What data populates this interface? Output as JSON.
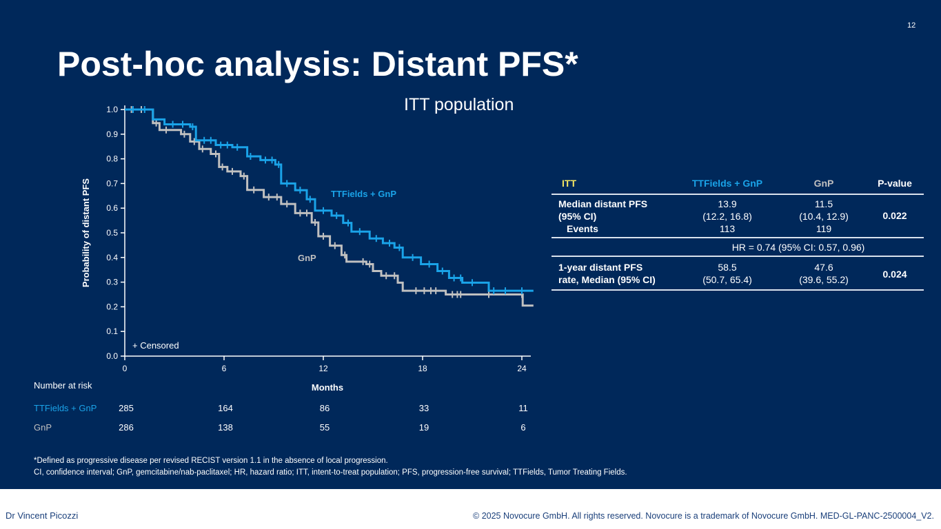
{
  "slide": {
    "title": "Post-hoc analysis: Distant PFS*",
    "page_number": "12",
    "subtitle": "ITT population",
    "background": "#00285a"
  },
  "chart_data": {
    "type": "line",
    "subtype": "kaplan-meier",
    "xlabel": "Months",
    "ylabel": "Probability of distant PFS",
    "xlim": [
      0,
      24
    ],
    "ylim": [
      0,
      1
    ],
    "xticks": [
      "0",
      "6",
      "12",
      "18",
      "24"
    ],
    "yticks": [
      "0.0",
      "0.1",
      "0.2",
      "0.3",
      "0.4",
      "0.5",
      "0.6",
      "0.7",
      "0.8",
      "0.9",
      "1.0"
    ],
    "censored_label": "+ Censored",
    "grid": false,
    "series": [
      {
        "name": "TTFields + GnP",
        "color": "#1aa3e8",
        "points": [
          [
            0,
            1.0
          ],
          [
            1.7,
            0.96
          ],
          [
            2.4,
            0.94
          ],
          [
            3.95,
            0.93
          ],
          [
            4.3,
            0.875
          ],
          [
            5.5,
            0.856
          ],
          [
            6.5,
            0.847
          ],
          [
            7.4,
            0.81
          ],
          [
            8.2,
            0.795
          ],
          [
            9.1,
            0.777
          ],
          [
            9.45,
            0.7
          ],
          [
            10.3,
            0.673
          ],
          [
            11.0,
            0.636
          ],
          [
            11.5,
            0.59
          ],
          [
            12.5,
            0.57
          ],
          [
            13.2,
            0.54
          ],
          [
            13.7,
            0.505
          ],
          [
            14.8,
            0.477
          ],
          [
            15.6,
            0.458
          ],
          [
            16.3,
            0.44
          ],
          [
            16.8,
            0.4
          ],
          [
            17.9,
            0.373
          ],
          [
            18.9,
            0.345
          ],
          [
            19.6,
            0.317
          ],
          [
            20.4,
            0.298
          ],
          [
            22.0,
            0.265
          ],
          [
            24.7,
            0.265
          ]
        ],
        "censored": [
          0.5,
          1.2,
          2.9,
          3.5,
          4.1,
          4.8,
          5.2,
          5.8,
          6.2,
          6.8,
          7.6,
          8.5,
          8.9,
          9.3,
          9.8,
          10.6,
          11.2,
          12.0,
          12.8,
          13.5,
          14.2,
          15.2,
          16.0,
          16.6,
          17.4,
          18.4,
          19.2,
          19.9,
          20.3,
          21.0,
          22.3,
          23.0,
          24.0
        ]
      },
      {
        "name": "GnP",
        "color": "#c0c0c0",
        "points": [
          [
            0,
            1.0
          ],
          [
            1.7,
            0.945
          ],
          [
            2.1,
            0.917
          ],
          [
            3.4,
            0.9
          ],
          [
            3.95,
            0.87
          ],
          [
            4.5,
            0.84
          ],
          [
            5.2,
            0.82
          ],
          [
            5.7,
            0.767
          ],
          [
            6.2,
            0.749
          ],
          [
            7.0,
            0.73
          ],
          [
            7.4,
            0.674
          ],
          [
            8.4,
            0.645
          ],
          [
            9.45,
            0.617
          ],
          [
            10.3,
            0.58
          ],
          [
            11.3,
            0.542
          ],
          [
            11.7,
            0.486
          ],
          [
            12.4,
            0.448
          ],
          [
            13.1,
            0.41
          ],
          [
            13.4,
            0.383
          ],
          [
            14.6,
            0.373
          ],
          [
            15.0,
            0.345
          ],
          [
            15.5,
            0.326
          ],
          [
            16.5,
            0.298
          ],
          [
            16.8,
            0.265
          ],
          [
            19.1,
            0.265
          ],
          [
            19.4,
            0.25
          ],
          [
            24.05,
            0.25
          ],
          [
            24.05,
            0.205
          ],
          [
            24.7,
            0.205
          ]
        ],
        "censored": [
          0.4,
          1.0,
          1.9,
          2.5,
          3.6,
          4.2,
          4.7,
          5.5,
          5.9,
          6.5,
          7.2,
          7.8,
          8.7,
          9.2,
          9.8,
          10.6,
          11.0,
          11.5,
          12.0,
          12.7,
          13.3,
          14.4,
          14.8,
          15.8,
          16.3,
          17.6,
          18.1,
          18.5,
          18.8,
          19.8,
          20.1,
          20.3,
          22.0,
          24.0
        ]
      }
    ],
    "series_labels": [
      "TTFields + GnP",
      "GnP"
    ]
  },
  "risk_table": {
    "title": "Number at risk",
    "rows": [
      {
        "label": "TTFields + GnP",
        "color": "#1aa3e8",
        "values": [
          "285",
          "164",
          "86",
          "33",
          "11"
        ]
      },
      {
        "label": "GnP",
        "color": "#c0c0c0",
        "values": [
          "286",
          "138",
          "55",
          "19",
          "6"
        ]
      }
    ]
  },
  "results_table": {
    "headers": [
      "ITT",
      "TTFields + GnP",
      "GnP",
      "P-value"
    ],
    "header_colors": [
      "#f5e663",
      "#1aa3e8",
      "#c0c0c0",
      "#ffffff"
    ],
    "median": {
      "label1": "Median distant PFS",
      "label2": "(95% CI)",
      "label3": "Events",
      "ttf": "13.9",
      "ttf_ci": "(12.2, 16.8)",
      "ttf_events": "113",
      "gnp": "11.5",
      "gnp_ci": "(10.4, 12.9)",
      "gnp_events": "119",
      "p": "0.022"
    },
    "hr": "HR = 0.74 (95% CI: 0.57, 0.96)",
    "one_year": {
      "label1": "1-year distant PFS",
      "label2": "rate, Median (95% CI)",
      "ttf": "58.5",
      "ttf_ci": "(50.7, 65.4)",
      "gnp": "47.6",
      "gnp_ci": "(39.6, 55.2)",
      "p": "0.024"
    }
  },
  "footnotes": [
    "*Defined as progressive disease per revised RECIST version 1.1 in the absence of local progression.",
    "CI, confidence interval; GnP, gemcitabine/nab-paclitaxel; HR, hazard ratio; ITT, intent-to-treat population; PFS, progression-free survival; TTFields, Tumor Treating Fields."
  ],
  "footer": {
    "presenter": "Dr Vincent Picozzi",
    "copyright": "© 2025 Novocure GmbH. All rights reserved. Novocure is a trademark of Novocure GmbH. MED-GL-PANC-2500004_V2."
  }
}
